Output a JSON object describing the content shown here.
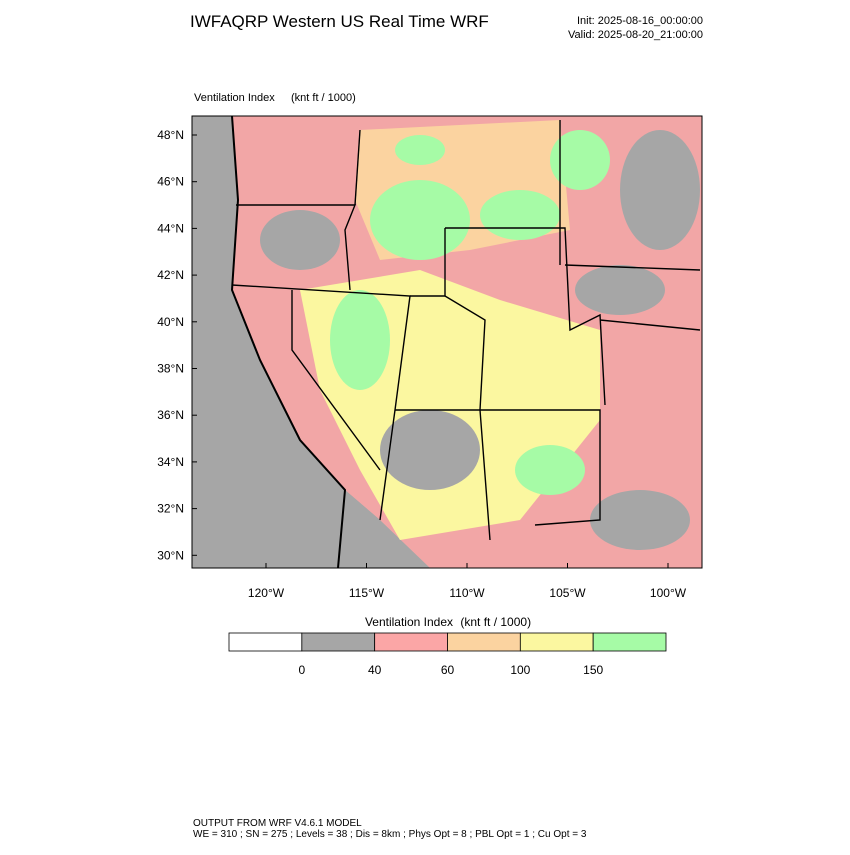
{
  "header": {
    "title": "IWFAQRP Western US Real Time WRF",
    "init": "Init: 2025-08-16_00:00:00",
    "valid": "Valid: 2025-08-20_21:00:00"
  },
  "map": {
    "field": "Ventilation Index",
    "units": "(knt ft / 1000)",
    "lat_labels": [
      "48°N",
      "46°N",
      "44°N",
      "42°N",
      "40°N",
      "38°N",
      "36°N",
      "34°N",
      "32°N",
      "30°N"
    ],
    "lon_labels": [
      "120°W",
      "115°W",
      "110°W",
      "105°W",
      "100°W"
    ]
  },
  "colorbar": {
    "title": "Ventilation Index",
    "units": "(knt ft / 1000)",
    "colors": [
      "#ffffff",
      "#a6a6a6",
      "#fba6a6",
      "#fbd3a0",
      "#fbf7a0",
      "#a6fba6"
    ],
    "labels": [
      0,
      40,
      60,
      100,
      150
    ]
  },
  "footer": {
    "line1": "OUTPUT FROM WRF V4.6.1 MODEL",
    "line2": "WE = 310 ; SN = 275 ; Levels = 38 ; Dis = 8km ; Phys Opt = 8 ; PBL Opt = 1 ; Cu Opt = 3"
  }
}
